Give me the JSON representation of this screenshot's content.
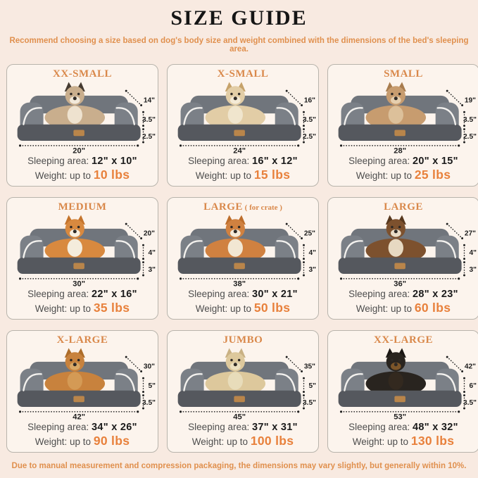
{
  "page": {
    "title": "SIZE GUIDE",
    "subtitle": "Recommend choosing a size based on dog's body size and weight combined with the dimensions of the bed's sleeping area.",
    "footer": "Due to manual measurement and compression packaging, the dimensions may vary slightly, but generally within 10%.",
    "colors": {
      "background": "#f8eae1",
      "card_background": "#fcf4ed",
      "title_orange": "#d9884a",
      "weight_orange": "#e8813c",
      "bed_bolster": "#70757c",
      "bed_base": "#55585e"
    }
  },
  "labels": {
    "sleeping_area": "Sleeping area:",
    "weight_prefix": "Weight: up to"
  },
  "cards": [
    {
      "size": "XX-SMALL",
      "size_suffix": "",
      "pet": "cat",
      "depth": "14\"",
      "bolster_height": "3.5\"",
      "base_height": "2.5\"",
      "width": "20\"",
      "sleeping_area": "12\" x 10\"",
      "weight": "10 lbs",
      "dog": {
        "body": "#c9ae8d",
        "chest": "#eee2cf",
        "ear": "#453a30",
        "muzzle": "#f2e9da"
      }
    },
    {
      "size": "X-SMALL",
      "size_suffix": "",
      "pet": "shih-tzu-puppy",
      "depth": "16\"",
      "bolster_height": "3.5\"",
      "base_height": "2.5\"",
      "width": "24\"",
      "sleeping_area": "16\" x 12\"",
      "weight": "15 lbs",
      "dog": {
        "body": "#e2cda6",
        "chest": "#f0e5cd",
        "ear": "#c6a26a",
        "muzzle": "#f4ead6"
      }
    },
    {
      "size": "SMALL",
      "size_suffix": "",
      "pet": "french-bulldog",
      "depth": "19\"",
      "bolster_height": "3.5\"",
      "base_height": "2.5\"",
      "width": "28\"",
      "sleeping_area": "20\" x 15\"",
      "weight": "25 lbs",
      "dog": {
        "body": "#c79c6f",
        "chest": "#dcc09a",
        "ear": "#a87c4e",
        "muzzle": "#e6cfae"
      }
    },
    {
      "size": "MEDIUM",
      "size_suffix": "",
      "pet": "corgi",
      "depth": "20\"",
      "bolster_height": "4\"",
      "base_height": "3\"",
      "width": "30\"",
      "sleeping_area": "22\" x 16\"",
      "weight": "35 lbs",
      "dog": {
        "body": "#d8893f",
        "chest": "#f4ecdc",
        "ear": "#c4742c",
        "muzzle": "#f6efe0"
      }
    },
    {
      "size": "LARGE",
      "size_suffix": " ( for crate )",
      "pet": "shiba-inu",
      "depth": "25\"",
      "bolster_height": "4\"",
      "base_height": "3\"",
      "width": "38\"",
      "sleeping_area": "30\" x 21\"",
      "weight": "50 lbs",
      "dog": {
        "body": "#d08140",
        "chest": "#f2e7d3",
        "ear": "#bd6e2c",
        "muzzle": "#f4ead8"
      }
    },
    {
      "size": "LARGE",
      "size_suffix": "",
      "pet": "australian-shepherd",
      "depth": "27\"",
      "bolster_height": "4\"",
      "base_height": "3\"",
      "width": "36\"",
      "sleeping_area": "28\" x 23\"",
      "weight": "60 lbs",
      "dog": {
        "body": "#7d512e",
        "chest": "#e7d9c2",
        "ear": "#57381e",
        "muzzle": "#e9dcc6"
      }
    },
    {
      "size": "X-LARGE",
      "size_suffix": "",
      "pet": "golden-retriever",
      "depth": "30\"",
      "bolster_height": "5\"",
      "base_height": "3.5\"",
      "width": "42\"",
      "sleeping_area": "34\" x 26\"",
      "weight": "90 lbs",
      "dog": {
        "body": "#c8823d",
        "chest": "#d49a55",
        "ear": "#ad6d2a",
        "muzzle": "#d9a967"
      }
    },
    {
      "size": "JUMBO",
      "size_suffix": "",
      "pet": "labrador",
      "depth": "35\"",
      "bolster_height": "5\"",
      "base_height": "3.5\"",
      "width": "45\"",
      "sleeping_area": "37\" x 31\"",
      "weight": "100 lbs",
      "dog": {
        "body": "#ddc89c",
        "chest": "#e8dcba",
        "ear": "#c9b184",
        "muzzle": "#ece0c0"
      }
    },
    {
      "size": "XX-LARGE",
      "size_suffix": "",
      "pet": "rottweiler",
      "depth": "42\"",
      "bolster_height": "6\"",
      "base_height": "3.5\"",
      "width": "53\"",
      "sleeping_area": "48\" x 32\"",
      "weight": "130 lbs",
      "dog": {
        "body": "#29241f",
        "chest": "#33291f",
        "ear": "#1b1714",
        "muzzle": "#7c5529"
      }
    }
  ]
}
